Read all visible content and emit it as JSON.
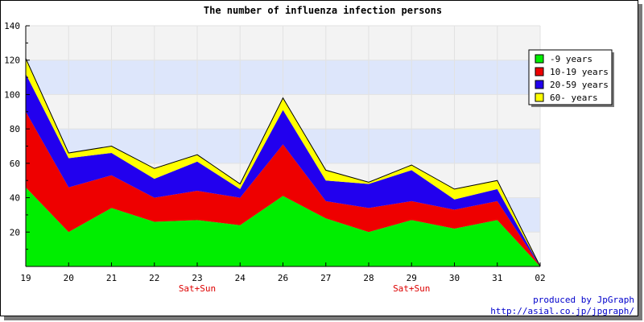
{
  "chart_data": {
    "type": "area",
    "stacked": true,
    "title": "The number of influenza infection persons",
    "xlabel": "",
    "ylabel": "",
    "ylim": [
      0,
      140
    ],
    "yticks": [
      20,
      40,
      60,
      80,
      100,
      120,
      140
    ],
    "categories": [
      "19",
      "20",
      "21",
      "22",
      "23",
      "24",
      "26",
      "27",
      "28",
      "29",
      "30",
      "31",
      "02"
    ],
    "category_notes": [
      {
        "category": "23",
        "text": "Sat+Sun"
      },
      {
        "category": "29",
        "text": "Sat+Sun"
      }
    ],
    "grid": true,
    "band_colors": [
      "#dde6fb",
      "#f3f3f3"
    ],
    "legend_position": "top-right",
    "series": [
      {
        "name": "-9 years",
        "color": "#00ee00",
        "values": [
          46,
          20,
          34,
          26,
          27,
          24,
          41,
          28,
          20,
          27,
          22,
          27,
          0
        ]
      },
      {
        "name": "10-19 years",
        "color": "#ee0000",
        "values": [
          44,
          26,
          19,
          14,
          17,
          16,
          30,
          10,
          14,
          11,
          11,
          11,
          0
        ]
      },
      {
        "name": "20-59 years",
        "color": "#2200ee",
        "values": [
          22,
          17,
          13,
          11,
          17,
          5,
          20,
          12,
          14,
          18,
          6,
          7,
          0
        ]
      },
      {
        "name": "60- years",
        "color": "#ffff00",
        "values": [
          9,
          3,
          4,
          6,
          4,
          3,
          7,
          6,
          1,
          3,
          6,
          5,
          0
        ]
      }
    ]
  },
  "credit": {
    "line1": "produced by JpGraph",
    "line2": "http://asial.co.jp/jpgraph/"
  }
}
